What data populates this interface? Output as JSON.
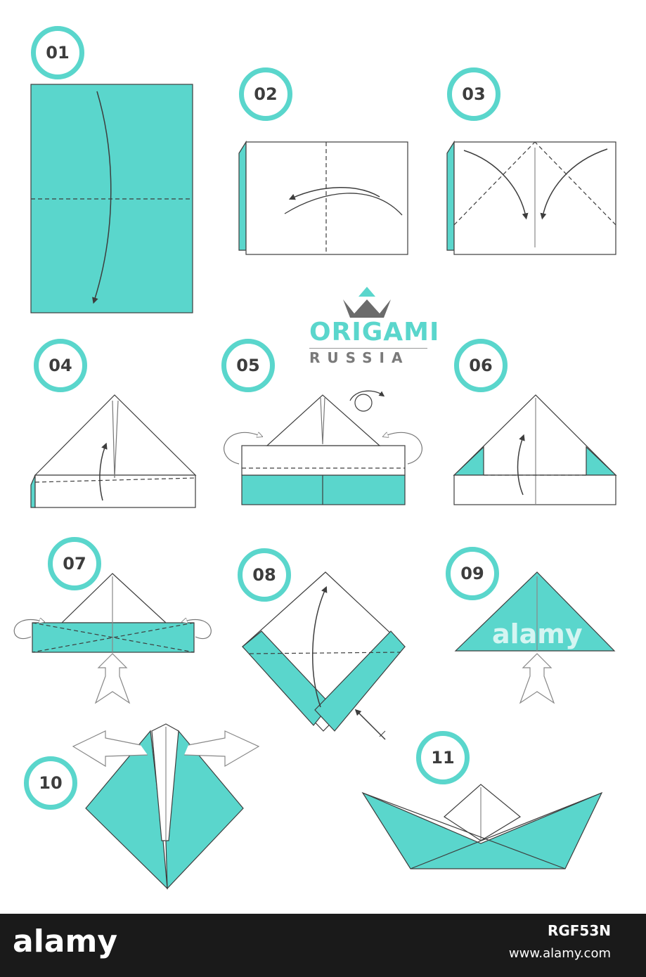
{
  "steps": {
    "s01": "01",
    "s02": "02",
    "s03": "03",
    "s04": "04",
    "s05": "05",
    "s06": "06",
    "s07": "07",
    "s08": "08",
    "s09": "09",
    "s10": "10",
    "s11": "11"
  },
  "logo": {
    "title": "ORIGAMI",
    "subtitle": "RUSSIA",
    "icon": "crown-icon"
  },
  "watermark": "alamy",
  "footer": {
    "brand": "alamy",
    "image_code": "RGF53N",
    "url": "www.alamy.com"
  },
  "colors": {
    "accent": "#5ad6cc",
    "paper": "#ffffff",
    "line": "#3d3d3d",
    "footer_bg": "#1a1a1a"
  }
}
